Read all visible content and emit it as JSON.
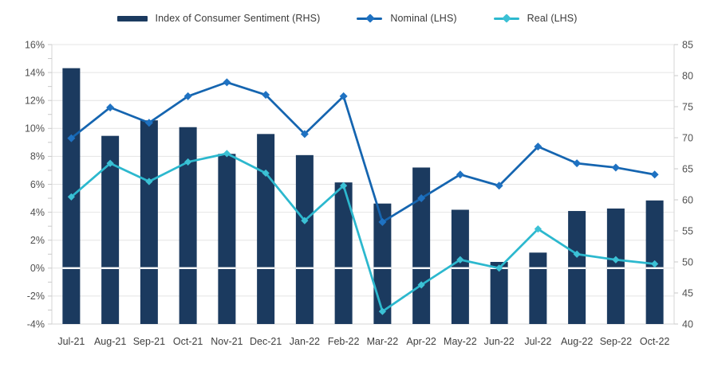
{
  "chart_data": {
    "type": "combo",
    "title": "",
    "legend_position": "top",
    "grid": true,
    "categories": [
      "Jul-21",
      "Aug-21",
      "Sep-21",
      "Oct-21",
      "Nov-21",
      "Dec-21",
      "Jan-22",
      "Feb-22",
      "Mar-22",
      "Apr-22",
      "May-22",
      "Jun-22",
      "Jul-22",
      "Aug-22",
      "Sep-22",
      "Oct-22"
    ],
    "series": [
      {
        "name": "Index of Consumer Sentiment (RHS)",
        "type": "bar",
        "axis": "right",
        "color": "#1b3a5f",
        "values": [
          81.2,
          70.3,
          72.8,
          71.7,
          67.4,
          70.6,
          67.2,
          62.8,
          59.4,
          65.2,
          58.4,
          50.0,
          51.5,
          58.2,
          58.6,
          59.9
        ]
      },
      {
        "name": "Nominal (LHS)",
        "type": "line",
        "axis": "left",
        "marker": "diamond",
        "color": "#1565b0",
        "marker_color": "#1f72c2",
        "values": [
          9.3,
          11.5,
          10.4,
          12.3,
          13.3,
          12.4,
          9.6,
          12.3,
          3.3,
          5.0,
          6.7,
          5.9,
          8.7,
          7.5,
          7.2,
          6.7
        ]
      },
      {
        "name": "Real (LHS)",
        "type": "line",
        "axis": "left",
        "marker": "diamond",
        "color": "#2cb8ce",
        "marker_color": "#3cc1d5",
        "values": [
          5.1,
          7.5,
          6.2,
          7.6,
          8.2,
          6.8,
          3.4,
          5.9,
          -3.1,
          -1.2,
          0.6,
          0.0,
          2.8,
          1.0,
          0.6,
          0.3
        ]
      }
    ],
    "left_axis": {
      "min": -4,
      "max": 16,
      "tick_step": 2,
      "minor_tick_step": 1,
      "suffix": "%",
      "ticks": [
        {
          "label": "16%",
          "value": 16
        },
        {
          "label": "14%",
          "value": 14
        },
        {
          "label": "12%",
          "value": 12
        },
        {
          "label": "10%",
          "value": 10
        },
        {
          "label": "8%",
          "value": 8
        },
        {
          "label": "6%",
          "value": 6
        },
        {
          "label": "4%",
          "value": 4
        },
        {
          "label": "2%",
          "value": 2
        },
        {
          "label": "0%",
          "value": 0
        },
        {
          "label": "-2%",
          "value": -2
        },
        {
          "label": "-4%",
          "value": -4
        }
      ]
    },
    "right_axis": {
      "min": 40,
      "max": 85,
      "tick_step": 5,
      "ticks": [
        {
          "label": "85",
          "value": 85
        },
        {
          "label": "80",
          "value": 80
        },
        {
          "label": "75",
          "value": 75
        },
        {
          "label": "70",
          "value": 70
        },
        {
          "label": "65",
          "value": 65
        },
        {
          "label": "60",
          "value": 60
        },
        {
          "label": "55",
          "value": 55
        },
        {
          "label": "50",
          "value": 50
        },
        {
          "label": "45",
          "value": 45
        },
        {
          "label": "40",
          "value": 40
        }
      ]
    },
    "styles": {
      "background": "#ffffff",
      "grid_color": "#e4e4e4",
      "axis_line_color": "#d6d6d6",
      "tick_mark_color": "#c9c9c9",
      "tick_label_color": "#4f4f4f",
      "x_label_color": "#3f3f3f",
      "zero_line_color": "#ffffff"
    }
  }
}
